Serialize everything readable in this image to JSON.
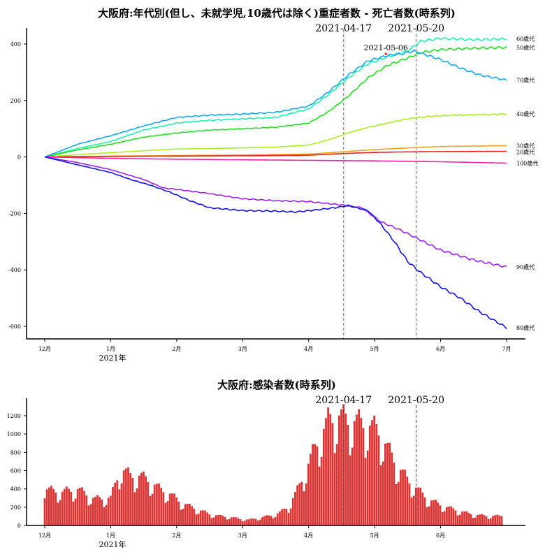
{
  "chart_data": [
    {
      "type": "line",
      "title": "大阪府:年代別(但し、未就学児,10歳代は除く)重症者数 - 死亡者数(時系列)",
      "ylim": [
        -650,
        460
      ],
      "yticks": [
        400,
        200,
        0,
        -200,
        -400,
        -600
      ],
      "ytick_labels": [
        "400",
        "200",
        "0",
        "-200",
        "-400",
        "-600"
      ],
      "xticks": [
        0,
        1,
        2,
        3,
        4,
        5,
        6,
        7
      ],
      "xtick_labels": [
        "12月",
        "1月",
        "2月",
        "3月",
        "4月",
        "5月",
        "6月",
        "7月"
      ],
      "x_year_label": "2021年",
      "x_unit": "months since 2020-12-01",
      "xlim": [
        -0.25,
        7.3
      ],
      "vlines": [
        {
          "x": 4.53,
          "label": "2021-04-17"
        },
        {
          "x": 5.63,
          "label": "2021-05-20"
        }
      ],
      "point_annotation": {
        "x": 5.17,
        "y": 365,
        "label": "2021-05-06",
        "color": "#e02020"
      },
      "series": [
        {
          "name": "60歳代",
          "color": "#20f0b0",
          "x": [
            0,
            0.5,
            1,
            1.5,
            2,
            2.5,
            3,
            3.5,
            4,
            4.3,
            4.6,
            4.9,
            5.2,
            5.5,
            5.7,
            6,
            6.5,
            7
          ],
          "y": [
            0,
            30,
            55,
            95,
            120,
            130,
            135,
            140,
            170,
            220,
            280,
            330,
            355,
            375,
            410,
            420,
            415,
            418
          ]
        },
        {
          "name": "50歳代",
          "color": "#20e020",
          "x": [
            0,
            0.5,
            1,
            1.5,
            2,
            2.5,
            3,
            3.5,
            4,
            4.3,
            4.6,
            4.9,
            5.2,
            5.5,
            5.7,
            6,
            6.5,
            7
          ],
          "y": [
            0,
            25,
            45,
            70,
            85,
            95,
            100,
            105,
            120,
            160,
            215,
            280,
            325,
            350,
            370,
            380,
            385,
            388
          ]
        },
        {
          "name": "70歳代",
          "color": "#10a8f0",
          "x": [
            0,
            0.5,
            1,
            1.5,
            2,
            2.5,
            3,
            3.5,
            4,
            4.3,
            4.6,
            4.9,
            5.2,
            5.4,
            5.6,
            5.8,
            6,
            6.3,
            6.6,
            7
          ],
          "y": [
            0,
            45,
            75,
            110,
            140,
            148,
            152,
            158,
            180,
            230,
            290,
            340,
            360,
            365,
            375,
            360,
            345,
            315,
            290,
            272
          ]
        },
        {
          "name": "40歳代",
          "color": "#a8f020",
          "x": [
            0,
            0.5,
            1,
            1.5,
            2,
            2.5,
            3,
            3.5,
            4,
            4.3,
            4.6,
            4.9,
            5.2,
            5.5,
            5.8,
            6.2,
            7
          ],
          "y": [
            0,
            8,
            15,
            22,
            28,
            30,
            32,
            35,
            42,
            60,
            85,
            105,
            120,
            135,
            143,
            148,
            152
          ]
        },
        {
          "name": "30歳代",
          "color": "#f0a020",
          "x": [
            0,
            1,
            2,
            3,
            4,
            4.5,
            5,
            5.5,
            6,
            7
          ],
          "y": [
            0,
            3,
            5,
            7,
            10,
            18,
            26,
            32,
            37,
            40
          ]
        },
        {
          "name": "20歳代",
          "color": "#e82020",
          "x": [
            0,
            1,
            2,
            3,
            4,
            4.5,
            5,
            5.5,
            6,
            7
          ],
          "y": [
            0,
            2,
            3,
            4,
            6,
            12,
            16,
            18,
            19,
            20
          ]
        },
        {
          "name": "100歳代",
          "color": "#f020a0",
          "x": [
            0,
            1,
            2,
            3,
            4,
            5,
            6,
            7
          ],
          "y": [
            0,
            -5,
            -8,
            -10,
            -12,
            -14,
            -17,
            -22
          ]
        },
        {
          "name": "90歳代",
          "color": "#a020f0",
          "x": [
            0,
            0.5,
            1,
            1.5,
            1.8,
            2,
            2.5,
            3,
            3.5,
            4,
            4.5,
            4.8,
            5.1,
            5.4,
            5.7,
            6,
            6.5,
            7
          ],
          "y": [
            0,
            -20,
            -45,
            -80,
            -110,
            -115,
            -130,
            -148,
            -155,
            -158,
            -170,
            -180,
            -230,
            -260,
            -295,
            -330,
            -365,
            -390
          ]
        },
        {
          "name": "80歳代",
          "color": "#1010e8",
          "x": [
            0,
            0.5,
            1,
            1.3,
            1.6,
            1.9,
            2.2,
            2.5,
            3,
            3.5,
            3.8,
            4.1,
            4.4,
            4.6,
            4.9,
            5.1,
            5.3,
            5.5,
            5.7,
            6,
            6.3,
            6.6,
            7
          ],
          "y": [
            0,
            -28,
            -55,
            -80,
            -100,
            -125,
            -155,
            -180,
            -190,
            -192,
            -195,
            -188,
            -180,
            -172,
            -190,
            -240,
            -300,
            -370,
            -410,
            -460,
            -500,
            -550,
            -605
          ]
        }
      ]
    },
    {
      "type": "bar",
      "title": "大阪府:感染者数(時系列)",
      "color": "#dd3333",
      "ylim": [
        0,
        1380
      ],
      "yticks": [
        0,
        200,
        400,
        600,
        800,
        1000,
        1200
      ],
      "ytick_labels": [
        "0",
        "200",
        "400",
        "600",
        "800",
        "1000",
        "1200"
      ],
      "xticks": [
        0,
        1,
        2,
        3,
        4,
        5,
        6
      ],
      "xtick_labels": [
        "12月",
        "1月",
        "2月",
        "3月",
        "4月",
        "5月",
        "6月"
      ],
      "x_year_label": "2021年",
      "x_unit": "months since 2020-12-01",
      "xlim": [
        -0.25,
        7.3
      ],
      "vlines": [
        {
          "x": 4.53,
          "label": "2021-04-17"
        },
        {
          "x": 5.63,
          "label": "2021-05-20"
        }
      ],
      "weekly_x": [
        0,
        0.25,
        0.5,
        0.75,
        1,
        1.15,
        1.3,
        1.45,
        1.6,
        1.75,
        1.9,
        2.05,
        2.2,
        2.35,
        2.5,
        2.65,
        2.8,
        2.95,
        3.1,
        3.25,
        3.4,
        3.55,
        3.7,
        3.85,
        4.0,
        4.15,
        4.3,
        4.45,
        4.6,
        4.75,
        4.9,
        5.05,
        5.2,
        5.35,
        5.5,
        5.65,
        5.8,
        5.95,
        6.1,
        6.25,
        6.4,
        6.55,
        6.7,
        6.85,
        6.95
      ],
      "weekly_values": [
        380,
        350,
        380,
        280,
        290,
        600,
        520,
        520,
        460,
        380,
        330,
        250,
        200,
        160,
        120,
        100,
        90,
        70,
        60,
        80,
        100,
        130,
        200,
        400,
        650,
        900,
        1100,
        1150,
        1100,
        1080,
        1050,
        1000,
        800,
        620,
        480,
        380,
        280,
        230,
        190,
        160,
        130,
        110,
        100,
        100,
        100
      ],
      "day_step": 0.0333
    }
  ]
}
